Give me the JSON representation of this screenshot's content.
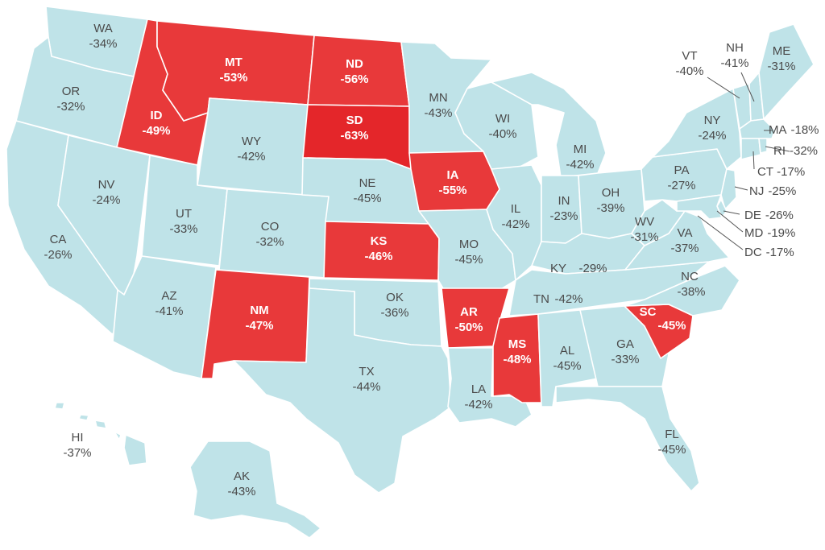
{
  "map": {
    "colors": {
      "low": "#bfe3e8",
      "high": "#e8393a",
      "highest": "#e4262a",
      "border": "#ffffff",
      "label_light": "#4a4a4a",
      "label_dark": "#ffffff"
    },
    "highlighted_threshold_note_visible": false,
    "states": [
      {
        "abbr": "WA",
        "value": "-34%",
        "highlight": false
      },
      {
        "abbr": "OR",
        "value": "-32%",
        "highlight": false
      },
      {
        "abbr": "CA",
        "value": "-26%",
        "highlight": false
      },
      {
        "abbr": "ID",
        "value": "-49%",
        "highlight": true
      },
      {
        "abbr": "NV",
        "value": "-24%",
        "highlight": false
      },
      {
        "abbr": "MT",
        "value": "-53%",
        "highlight": true
      },
      {
        "abbr": "WY",
        "value": "-42%",
        "highlight": false
      },
      {
        "abbr": "UT",
        "value": "-33%",
        "highlight": false
      },
      {
        "abbr": "AZ",
        "value": "-41%",
        "highlight": false
      },
      {
        "abbr": "CO",
        "value": "-32%",
        "highlight": false
      },
      {
        "abbr": "NM",
        "value": "-47%",
        "highlight": true
      },
      {
        "abbr": "ND",
        "value": "-56%",
        "highlight": true
      },
      {
        "abbr": "SD",
        "value": "-63%",
        "highlight": true
      },
      {
        "abbr": "NE",
        "value": "-45%",
        "highlight": false
      },
      {
        "abbr": "KS",
        "value": "-46%",
        "highlight": true
      },
      {
        "abbr": "OK",
        "value": "-36%",
        "highlight": false
      },
      {
        "abbr": "TX",
        "value": "-44%",
        "highlight": false
      },
      {
        "abbr": "MN",
        "value": "-43%",
        "highlight": false
      },
      {
        "abbr": "IA",
        "value": "-55%",
        "highlight": true
      },
      {
        "abbr": "MO",
        "value": "-45%",
        "highlight": false
      },
      {
        "abbr": "AR",
        "value": "-50%",
        "highlight": true
      },
      {
        "abbr": "LA",
        "value": "-42%",
        "highlight": false
      },
      {
        "abbr": "WI",
        "value": "-40%",
        "highlight": false
      },
      {
        "abbr": "IL",
        "value": "-42%",
        "highlight": false
      },
      {
        "abbr": "MS",
        "value": "-48%",
        "highlight": true
      },
      {
        "abbr": "MI",
        "value": "-42%",
        "highlight": false
      },
      {
        "abbr": "IN",
        "value": "-23%",
        "highlight": false
      },
      {
        "abbr": "KY",
        "value": "-29%",
        "highlight": false
      },
      {
        "abbr": "TN",
        "value": "-42%",
        "highlight": false
      },
      {
        "abbr": "AL",
        "value": "-45%",
        "highlight": false
      },
      {
        "abbr": "OH",
        "value": "-39%",
        "highlight": false
      },
      {
        "abbr": "WV",
        "value": "-31%",
        "highlight": false
      },
      {
        "abbr": "GA",
        "value": "-33%",
        "highlight": false
      },
      {
        "abbr": "FL",
        "value": "-45%",
        "highlight": false
      },
      {
        "abbr": "SC",
        "value": "-45%",
        "highlight": true
      },
      {
        "abbr": "NC",
        "value": "-38%",
        "highlight": false
      },
      {
        "abbr": "VA",
        "value": "-37%",
        "highlight": false
      },
      {
        "abbr": "PA",
        "value": "-27%",
        "highlight": false
      },
      {
        "abbr": "NY",
        "value": "-24%",
        "highlight": false
      },
      {
        "abbr": "VT",
        "value": "-40%",
        "highlight": false
      },
      {
        "abbr": "NH",
        "value": "-41%",
        "highlight": false
      },
      {
        "abbr": "ME",
        "value": "-31%",
        "highlight": false
      },
      {
        "abbr": "MA",
        "value": "-18%",
        "highlight": false
      },
      {
        "abbr": "RI",
        "value": "-32%",
        "highlight": false
      },
      {
        "abbr": "CT",
        "value": "-17%",
        "highlight": false
      },
      {
        "abbr": "NJ",
        "value": "-25%",
        "highlight": false
      },
      {
        "abbr": "DE",
        "value": "-26%",
        "highlight": false
      },
      {
        "abbr": "MD",
        "value": "-19%",
        "highlight": false
      },
      {
        "abbr": "DC",
        "value": "-17%",
        "highlight": false
      },
      {
        "abbr": "AK",
        "value": "-43%",
        "highlight": false
      },
      {
        "abbr": "HI",
        "value": "-37%",
        "highlight": false
      }
    ]
  }
}
